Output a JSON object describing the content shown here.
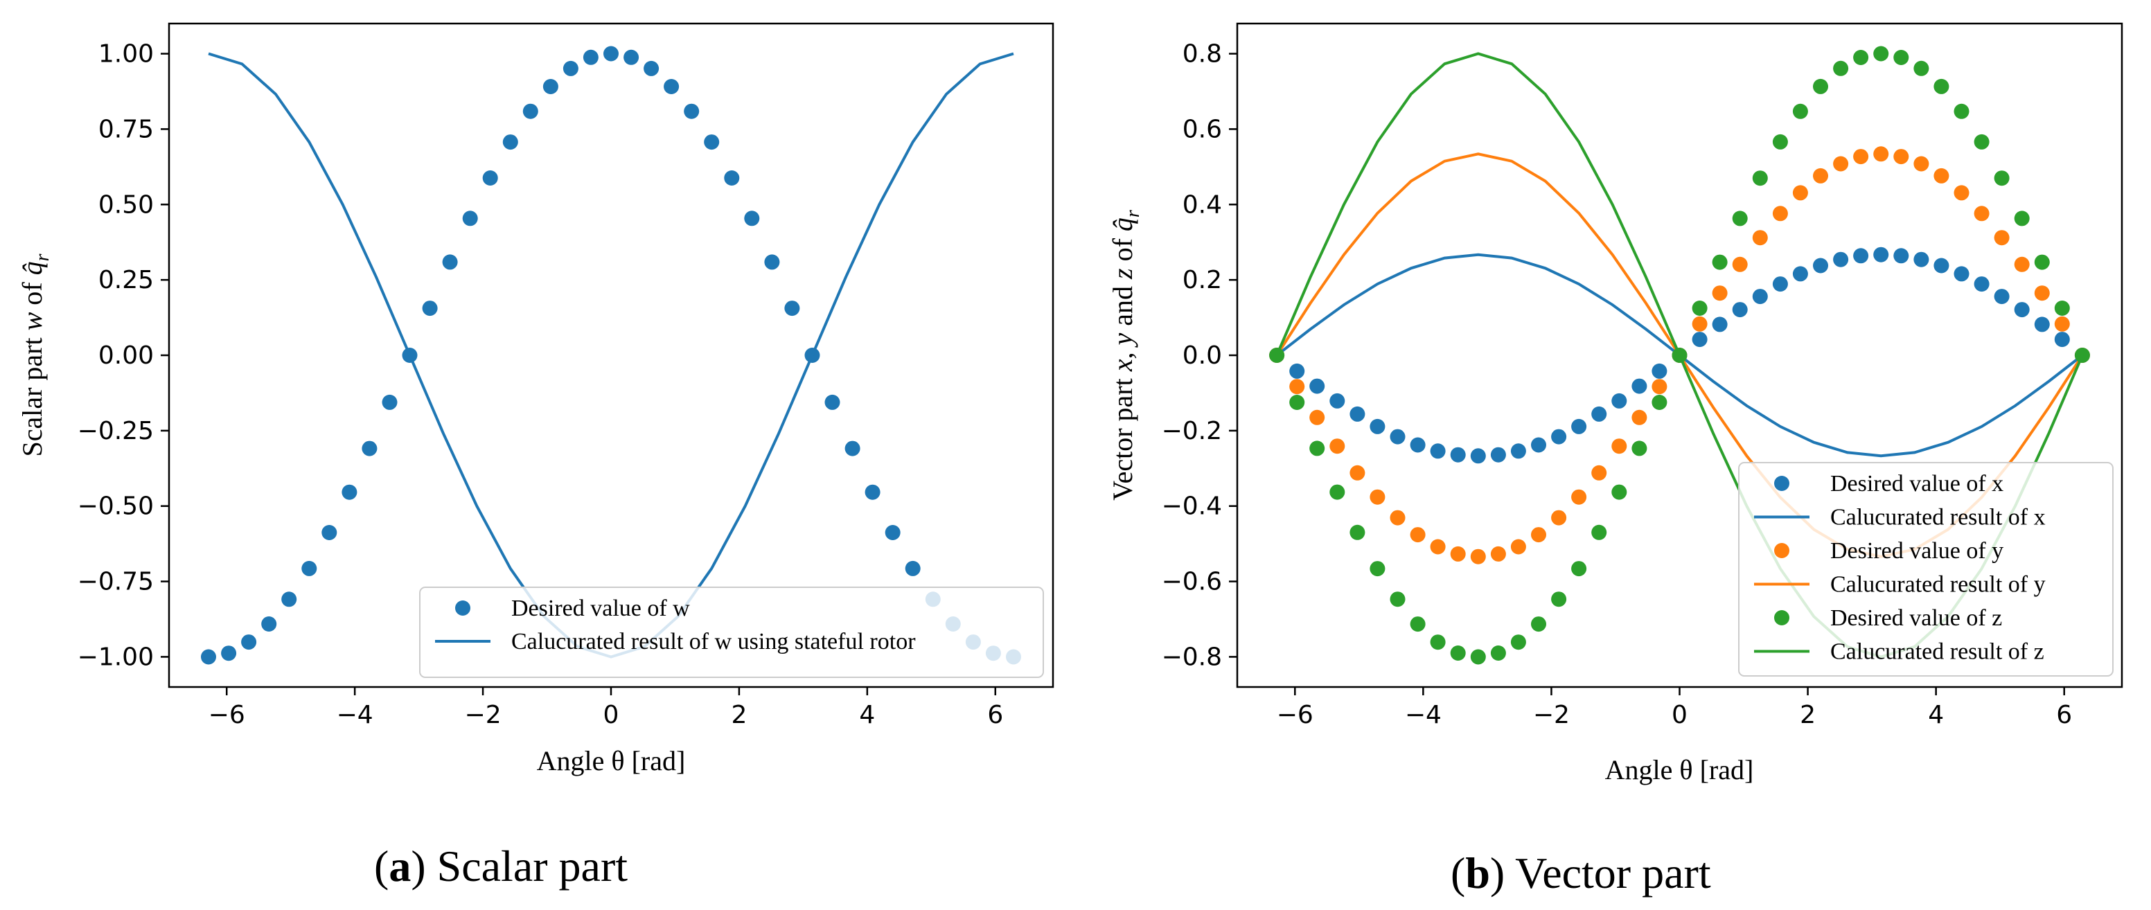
{
  "colors": {
    "blue": "#1f77b4",
    "orange": "#ff7f0e",
    "green": "#2ca02c"
  },
  "captions": {
    "a": {
      "letter": "a",
      "text": " Scalar part"
    },
    "b": {
      "letter": "b",
      "text": " Vector part"
    }
  },
  "chart_data": [
    {
      "id": "a",
      "type": "line+scatter",
      "xlabel": "Angle θ [rad]",
      "ylabel_prefix": "Scalar part ",
      "ylabel_var": "w",
      "ylabel_mid": " of ",
      "ylabel_q": "q̂",
      "ylabel_sub": "r",
      "xlim": [
        -6.9,
        6.9
      ],
      "ylim": [
        -1.1,
        1.1
      ],
      "xticks": [
        -6,
        -4,
        -2,
        0,
        2,
        4,
        6
      ],
      "xtick_labels": [
        "−6",
        "−4",
        "−2",
        "0",
        "2",
        "4",
        "6"
      ],
      "yticks": [
        -1.0,
        -0.75,
        -0.5,
        -0.25,
        0.0,
        0.25,
        0.5,
        0.75,
        1.0
      ],
      "ytick_labels": [
        "−1.00",
        "−0.75",
        "−0.50",
        "−0.25",
        "0.00",
        "0.25",
        "0.50",
        "0.75",
        "1.00"
      ],
      "legend_position": "lower-right",
      "series": [
        {
          "name": "Desired value of w",
          "kind": "scatter",
          "color": "#1f77b4",
          "x": [
            -6.2832,
            -5.969,
            -5.6549,
            -5.3407,
            -5.0265,
            -4.7124,
            -4.3982,
            -4.0841,
            -3.7699,
            -3.4558,
            -3.1416,
            -2.8274,
            -2.5133,
            -2.1991,
            -1.885,
            -1.5708,
            -1.2566,
            -0.9425,
            -0.6283,
            -0.3142,
            0.0,
            0.3142,
            0.6283,
            0.9425,
            1.2566,
            1.5708,
            1.885,
            2.1991,
            2.5133,
            2.8274,
            3.1416,
            3.4558,
            3.7699,
            4.0841,
            4.3982,
            4.7124,
            5.0265,
            5.3407,
            5.6549,
            5.969,
            6.2832
          ],
          "y": [
            -1.0,
            -0.988,
            -0.951,
            -0.891,
            -0.809,
            -0.707,
            -0.588,
            -0.454,
            -0.309,
            -0.156,
            0.0,
            0.156,
            0.309,
            0.454,
            0.588,
            0.707,
            0.809,
            0.891,
            0.951,
            0.988,
            1.0,
            0.988,
            0.951,
            0.891,
            0.809,
            0.707,
            0.588,
            0.454,
            0.309,
            0.156,
            0.0,
            -0.156,
            -0.309,
            -0.454,
            -0.588,
            -0.707,
            -0.809,
            -0.891,
            -0.951,
            -0.988,
            -1.0
          ]
        },
        {
          "name": "Calucurated result of w using stateful rotor",
          "kind": "line",
          "color": "#1f77b4",
          "x": [
            -6.2832,
            -5.7596,
            -5.236,
            -4.7124,
            -4.1888,
            -3.6652,
            -3.1416,
            -2.618,
            -2.0944,
            -1.5708,
            -1.0472,
            -0.5236,
            0.0,
            0.5236,
            1.0472,
            1.5708,
            2.0944,
            2.618,
            3.1416,
            3.6652,
            4.1888,
            4.7124,
            5.236,
            5.7596,
            6.2832
          ],
          "y": [
            1.0,
            0.966,
            0.866,
            0.707,
            0.5,
            0.259,
            0.0,
            -0.259,
            -0.5,
            -0.707,
            -0.866,
            -0.966,
            -1.0,
            -0.966,
            -0.866,
            -0.707,
            -0.5,
            -0.259,
            0.0,
            0.259,
            0.5,
            0.707,
            0.866,
            0.966,
            1.0
          ]
        }
      ]
    },
    {
      "id": "b",
      "type": "line+scatter",
      "xlabel": "Angle θ [rad]",
      "ylabel_prefix": "Vector part ",
      "ylabel_var": "x, y",
      "ylabel_mid": " and ",
      "ylabel_var2": "z",
      "ylabel_mid2": "  of ",
      "ylabel_q": "q̂",
      "ylabel_sub": "r",
      "xlim": [
        -6.9,
        6.9
      ],
      "ylim": [
        -0.88,
        0.88
      ],
      "xticks": [
        -6,
        -4,
        -2,
        0,
        2,
        4,
        6
      ],
      "xtick_labels": [
        "−6",
        "−4",
        "−2",
        "0",
        "2",
        "4",
        "6"
      ],
      "yticks": [
        -0.8,
        -0.6,
        -0.4,
        -0.2,
        0.0,
        0.2,
        0.4,
        0.6,
        0.8
      ],
      "ytick_labels": [
        "−0.8",
        "−0.6",
        "−0.4",
        "−0.2",
        "0.0",
        "0.2",
        "0.4",
        "0.6",
        "0.8"
      ],
      "legend_position": "lower-right",
      "series": [
        {
          "name": "Desired value of x",
          "kind": "scatter",
          "color": "#1f77b4",
          "x": [
            -6.2832,
            -5.969,
            -5.6549,
            -5.3407,
            -5.0265,
            -4.7124,
            -4.3982,
            -4.0841,
            -3.7699,
            -3.4558,
            -3.1416,
            -2.8274,
            -2.5133,
            -2.1991,
            -1.885,
            -1.5708,
            -1.2566,
            -0.9425,
            -0.6283,
            -0.3142,
            0.0,
            0.3142,
            0.6283,
            0.9425,
            1.2566,
            1.5708,
            1.885,
            2.1991,
            2.5133,
            2.8274,
            3.1416,
            3.4558,
            3.7699,
            4.0841,
            4.3982,
            4.7124,
            5.0265,
            5.3407,
            5.6549,
            5.969,
            6.2832
          ],
          "y": [
            0.0,
            -0.042,
            -0.082,
            -0.121,
            -0.156,
            -0.189,
            -0.216,
            -0.238,
            -0.254,
            -0.264,
            -0.267,
            -0.264,
            -0.254,
            -0.238,
            -0.216,
            -0.189,
            -0.156,
            -0.121,
            -0.082,
            -0.042,
            0.0,
            0.042,
            0.082,
            0.121,
            0.156,
            0.189,
            0.216,
            0.238,
            0.254,
            0.264,
            0.267,
            0.264,
            0.254,
            0.238,
            0.216,
            0.189,
            0.156,
            0.121,
            0.082,
            0.042,
            0.0
          ]
        },
        {
          "name": "Calucurated result of x",
          "kind": "line",
          "color": "#1f77b4",
          "x": [
            -6.2832,
            -5.7596,
            -5.236,
            -4.7124,
            -4.1888,
            -3.6652,
            -3.1416,
            -2.618,
            -2.0944,
            -1.5708,
            -1.0472,
            -0.5236,
            0.0,
            0.5236,
            1.0472,
            1.5708,
            2.0944,
            2.618,
            3.1416,
            3.6652,
            4.1888,
            4.7124,
            5.236,
            5.7596,
            6.2832
          ],
          "y": [
            0.0,
            0.069,
            0.134,
            0.189,
            0.231,
            0.258,
            0.267,
            0.258,
            0.231,
            0.189,
            0.134,
            0.069,
            0.0,
            -0.069,
            -0.134,
            -0.189,
            -0.231,
            -0.258,
            -0.267,
            -0.258,
            -0.231,
            -0.189,
            -0.134,
            -0.069,
            0.0
          ]
        },
        {
          "name": "Desired value of y",
          "kind": "scatter",
          "color": "#ff7f0e",
          "x": [
            -6.2832,
            -5.969,
            -5.6549,
            -5.3407,
            -5.0265,
            -4.7124,
            -4.3982,
            -4.0841,
            -3.7699,
            -3.4558,
            -3.1416,
            -2.8274,
            -2.5133,
            -2.1991,
            -1.885,
            -1.5708,
            -1.2566,
            -0.9425,
            -0.6283,
            -0.3142,
            0.0,
            0.3142,
            0.6283,
            0.9425,
            1.2566,
            1.5708,
            1.885,
            2.1991,
            2.5133,
            2.8274,
            3.1416,
            3.4558,
            3.7699,
            4.0841,
            4.3982,
            4.7124,
            5.0265,
            5.3407,
            5.6549,
            5.969,
            6.2832
          ],
          "y": [
            0.0,
            -0.083,
            -0.165,
            -0.241,
            -0.312,
            -0.376,
            -0.431,
            -0.476,
            -0.508,
            -0.527,
            -0.534,
            -0.527,
            -0.508,
            -0.476,
            -0.431,
            -0.376,
            -0.312,
            -0.241,
            -0.165,
            -0.083,
            0.0,
            0.083,
            0.165,
            0.241,
            0.312,
            0.376,
            0.431,
            0.476,
            0.508,
            0.527,
            0.534,
            0.527,
            0.508,
            0.476,
            0.431,
            0.376,
            0.312,
            0.241,
            0.165,
            0.083,
            0.0
          ]
        },
        {
          "name": "Calucurated result of y",
          "kind": "line",
          "color": "#ff7f0e",
          "x": [
            -6.2832,
            -5.7596,
            -5.236,
            -4.7124,
            -4.1888,
            -3.6652,
            -3.1416,
            -2.618,
            -2.0944,
            -1.5708,
            -1.0472,
            -0.5236,
            0.0,
            0.5236,
            1.0472,
            1.5708,
            2.0944,
            2.618,
            3.1416,
            3.6652,
            4.1888,
            4.7124,
            5.236,
            5.7596,
            6.2832
          ],
          "y": [
            0.0,
            0.138,
            0.267,
            0.377,
            0.462,
            0.515,
            0.534,
            0.515,
            0.462,
            0.377,
            0.267,
            0.138,
            0.0,
            -0.138,
            -0.267,
            -0.377,
            -0.462,
            -0.515,
            -0.534,
            -0.515,
            -0.462,
            -0.377,
            -0.267,
            -0.138,
            0.0
          ]
        },
        {
          "name": "Desired value of z",
          "kind": "scatter",
          "color": "#2ca02c",
          "x": [
            -6.2832,
            -5.969,
            -5.6549,
            -5.3407,
            -5.0265,
            -4.7124,
            -4.3982,
            -4.0841,
            -3.7699,
            -3.4558,
            -3.1416,
            -2.8274,
            -2.5133,
            -2.1991,
            -1.885,
            -1.5708,
            -1.2566,
            -0.9425,
            -0.6283,
            -0.3142,
            0.0,
            0.3142,
            0.6283,
            0.9425,
            1.2566,
            1.5708,
            1.885,
            2.1991,
            2.5133,
            2.8274,
            3.1416,
            3.4558,
            3.7699,
            4.0841,
            4.3982,
            4.7124,
            5.0265,
            5.3407,
            5.6549,
            5.969,
            6.2832
          ],
          "y": [
            0.0,
            -0.125,
            -0.247,
            -0.363,
            -0.47,
            -0.566,
            -0.647,
            -0.713,
            -0.761,
            -0.79,
            -0.8,
            -0.79,
            -0.761,
            -0.713,
            -0.647,
            -0.566,
            -0.47,
            -0.363,
            -0.247,
            -0.125,
            0.0,
            0.125,
            0.247,
            0.363,
            0.47,
            0.566,
            0.647,
            0.713,
            0.761,
            0.79,
            0.8,
            0.79,
            0.761,
            0.713,
            0.647,
            0.566,
            0.47,
            0.363,
            0.247,
            0.125,
            0.0
          ]
        },
        {
          "name": "Calucurated result of z",
          "kind": "line",
          "color": "#2ca02c",
          "x": [
            -6.2832,
            -5.7596,
            -5.236,
            -4.7124,
            -4.1888,
            -3.6652,
            -3.1416,
            -2.618,
            -2.0944,
            -1.5708,
            -1.0472,
            -0.5236,
            0.0,
            0.5236,
            1.0472,
            1.5708,
            2.0944,
            2.618,
            3.1416,
            3.6652,
            4.1888,
            4.7124,
            5.236,
            5.7596,
            6.2832
          ],
          "y": [
            0.0,
            0.207,
            0.4,
            0.566,
            0.693,
            0.773,
            0.8,
            0.773,
            0.693,
            0.566,
            0.4,
            0.207,
            0.0,
            -0.207,
            -0.4,
            -0.566,
            -0.693,
            -0.773,
            -0.8,
            -0.773,
            -0.693,
            -0.566,
            -0.4,
            -0.207,
            0.0
          ]
        }
      ]
    }
  ]
}
